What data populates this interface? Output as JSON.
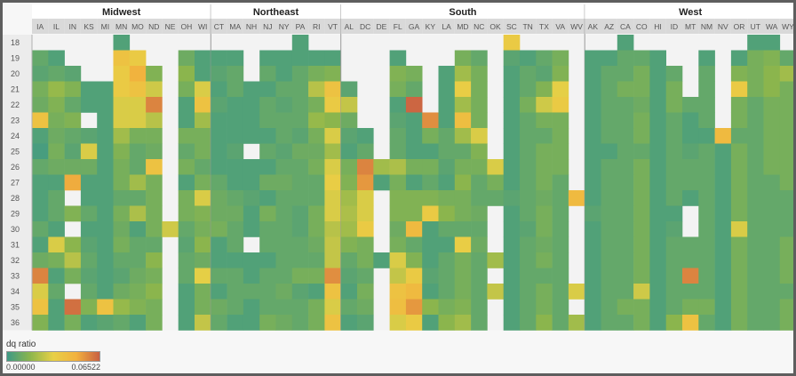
{
  "chart_data": {
    "type": "heatmap",
    "regions": [
      {
        "name": "Midwest",
        "states": [
          "IA",
          "IL",
          "IN",
          "KS",
          "MI",
          "MN",
          "MO",
          "ND",
          "NE",
          "OH",
          "WI"
        ]
      },
      {
        "name": "Northeast",
        "states": [
          "CT",
          "MA",
          "NH",
          "NJ",
          "NY",
          "PA",
          "RI",
          "VT"
        ]
      },
      {
        "name": "South",
        "states": [
          "AL",
          "DC",
          "DE",
          "FL",
          "GA",
          "KY",
          "LA",
          "MD",
          "NC",
          "OK",
          "SC",
          "TN",
          "TX",
          "VA",
          "WV"
        ]
      },
      {
        "name": "West",
        "states": [
          "AK",
          "AZ",
          "CA",
          "CO",
          "HI",
          "ID",
          "MT",
          "NM",
          "NV",
          "OR",
          "UT",
          "WA",
          "WY"
        ]
      }
    ],
    "rows": [
      "18",
      "19",
      "20",
      "21",
      "22",
      "23",
      "24",
      "25",
      "26",
      "27",
      "28",
      "29",
      "30",
      "31",
      "32",
      "33",
      "34",
      "35",
      "36"
    ],
    "legend_title": "dq ratio",
    "color_min_label": "0.00000",
    "color_max_label": "0.06522",
    "color_range": [
      0.0,
      0.06522
    ],
    "colors": [
      "#3e9a86",
      "#8cb64c",
      "#e8d046",
      "#f2b13e",
      "#c96042"
    ],
    "missing_color": "#f3f3f3",
    "values": {
      "IA": [
        null,
        0.008,
        0.006,
        0.012,
        0.01,
        0.04,
        0.004,
        0.002,
        0.008,
        0.004,
        0.004,
        0.004,
        0.008,
        0.004,
        0.01,
        0.058,
        0.03,
        0.04,
        0.014
      ],
      "IL": [
        null,
        0.004,
        0.008,
        0.018,
        0.014,
        0.012,
        0.01,
        0.012,
        0.01,
        0.004,
        0.008,
        0.008,
        0.004,
        0.03,
        0.012,
        0.004,
        0.008,
        0.004,
        0.004
      ],
      "IN": [
        null,
        null,
        0.006,
        0.014,
        0.008,
        0.014,
        0.008,
        0.006,
        0.01,
        0.05,
        null,
        0.014,
        null,
        0.016,
        0.024,
        0.012,
        null,
        0.062,
        0.012
      ],
      "KS": [
        null,
        null,
        null,
        0.004,
        0.004,
        null,
        0.006,
        0.03,
        0.01,
        0.004,
        0.004,
        0.008,
        0.004,
        0.006,
        0.008,
        0.006,
        0.008,
        0.014,
        0.004
      ],
      "MI": [
        null,
        null,
        null,
        0.004,
        0.004,
        0.004,
        0.004,
        0.004,
        0.004,
        0.004,
        0.004,
        0.004,
        0.004,
        0.004,
        0.004,
        0.004,
        0.004,
        0.04,
        0.006
      ],
      "MN": [
        0.004,
        0.04,
        0.036,
        0.036,
        0.03,
        0.03,
        0.02,
        0.014,
        0.012,
        0.012,
        0.008,
        0.012,
        0.01,
        0.012,
        0.008,
        0.006,
        0.01,
        0.018,
        0.008
      ],
      "MO": [
        null,
        0.036,
        0.048,
        0.04,
        0.03,
        0.03,
        0.012,
        0.008,
        0.008,
        0.02,
        0.008,
        0.022,
        0.004,
        0.008,
        0.008,
        0.01,
        0.012,
        0.014,
        0.004
      ],
      "ND": [
        null,
        null,
        0.014,
        0.028,
        0.058,
        0.024,
        0.012,
        0.01,
        0.04,
        0.012,
        0.012,
        0.012,
        0.012,
        0.008,
        0.016,
        0.012,
        0.016,
        0.012,
        0.012
      ],
      "NE": [
        null,
        null,
        null,
        null,
        null,
        null,
        null,
        null,
        null,
        null,
        null,
        null,
        0.028,
        null,
        null,
        null,
        null,
        null,
        null
      ],
      "OH": [
        null,
        0.01,
        0.016,
        0.012,
        0.004,
        0.004,
        0.012,
        0.008,
        0.012,
        0.004,
        0.012,
        0.012,
        0.008,
        0.006,
        0.008,
        0.008,
        0.004,
        0.004,
        0.004
      ],
      "WI": [
        null,
        0.004,
        0.004,
        0.03,
        0.04,
        0.02,
        0.012,
        0.012,
        0.008,
        0.012,
        0.03,
        0.014,
        0.012,
        0.016,
        0.01,
        0.032,
        0.012,
        0.012,
        0.026
      ],
      "CT": [
        null,
        0.004,
        0.006,
        0.004,
        0.006,
        0.004,
        0.004,
        0.004,
        0.004,
        0.008,
        0.01,
        0.01,
        0.012,
        0.004,
        0.004,
        0.008,
        0.004,
        0.01,
        0.008
      ],
      "MA": [
        null,
        0.004,
        0.008,
        0.008,
        0.004,
        0.004,
        0.004,
        0.006,
        0.004,
        0.004,
        0.008,
        0.01,
        0.008,
        0.008,
        0.004,
        0.008,
        0.008,
        0.008,
        0.004
      ],
      "NH": [
        null,
        null,
        null,
        0.004,
        0.004,
        0.004,
        0.004,
        null,
        0.004,
        0.004,
        0.006,
        0.004,
        0.004,
        null,
        0.004,
        0.004,
        0.008,
        0.004,
        0.004
      ],
      "NJ": [
        null,
        0.004,
        0.008,
        0.004,
        0.008,
        0.008,
        0.004,
        0.008,
        0.004,
        0.01,
        0.004,
        0.012,
        0.008,
        0.008,
        0.004,
        0.008,
        0.008,
        0.008,
        0.012
      ],
      "NY": [
        null,
        0.004,
        0.004,
        0.008,
        0.006,
        0.008,
        0.008,
        0.006,
        0.008,
        0.01,
        0.008,
        0.008,
        0.008,
        0.008,
        0.008,
        0.008,
        0.01,
        0.008,
        0.01
      ],
      "PA": [
        0.004,
        0.004,
        0.008,
        0.008,
        0.008,
        0.008,
        0.006,
        0.01,
        0.008,
        0.008,
        0.008,
        0.006,
        0.006,
        0.008,
        0.008,
        0.012,
        0.006,
        0.008,
        0.008
      ],
      "RI": [
        null,
        0.004,
        0.012,
        0.024,
        0.012,
        0.018,
        0.012,
        0.01,
        0.012,
        0.008,
        0.008,
        0.012,
        0.012,
        0.01,
        0.008,
        0.012,
        0.004,
        0.012,
        0.012
      ],
      "VT": [
        null,
        0.004,
        0.014,
        0.04,
        0.036,
        0.016,
        0.03,
        0.02,
        0.03,
        0.034,
        0.03,
        0.03,
        0.024,
        0.026,
        0.026,
        0.056,
        0.04,
        0.03,
        0.04
      ],
      "AL": [
        null,
        null,
        null,
        0.006,
        0.026,
        0.01,
        0.006,
        0.004,
        0.012,
        0.014,
        0.02,
        0.022,
        0.02,
        0.014,
        0.008,
        0.006,
        0.004,
        0.008,
        0.004
      ],
      "DC": [
        null,
        null,
        null,
        null,
        null,
        null,
        0.004,
        0.008,
        0.058,
        0.054,
        0.03,
        0.03,
        0.036,
        0.012,
        0.012,
        0.008,
        0.012,
        0.01,
        0.006
      ],
      "DE": [
        null,
        null,
        null,
        null,
        null,
        null,
        null,
        null,
        0.02,
        0.004,
        null,
        null,
        null,
        null,
        0.004,
        null,
        null,
        null,
        null
      ],
      "FL": [
        null,
        0.004,
        0.014,
        0.012,
        0.004,
        0.006,
        0.008,
        0.008,
        0.022,
        0.012,
        0.014,
        0.014,
        0.01,
        0.012,
        0.03,
        0.026,
        0.04,
        0.042,
        0.03
      ],
      "GA": [
        null,
        null,
        0.012,
        0.008,
        0.064,
        0.004,
        0.004,
        0.004,
        0.012,
        0.004,
        0.014,
        0.014,
        0.044,
        0.008,
        0.014,
        0.036,
        0.044,
        0.054,
        0.036
      ],
      "KY": [
        null,
        null,
        null,
        null,
        null,
        0.056,
        0.012,
        0.004,
        0.012,
        0.008,
        0.014,
        0.036,
        0.004,
        0.004,
        0.004,
        0.006,
        0.004,
        0.016,
        0.004
      ],
      "LA": [
        null,
        null,
        0.004,
        0.004,
        0.004,
        0.004,
        0.008,
        0.008,
        0.006,
        0.004,
        0.012,
        0.016,
        0.008,
        0.004,
        0.008,
        0.008,
        0.008,
        0.012,
        0.016
      ],
      "MD": [
        null,
        0.012,
        0.02,
        0.034,
        0.02,
        0.042,
        0.02,
        0.008,
        0.012,
        0.016,
        0.012,
        0.012,
        0.008,
        0.034,
        0.012,
        0.012,
        0.012,
        0.014,
        0.02
      ],
      "NC": [
        null,
        0.008,
        0.012,
        0.012,
        0.012,
        0.012,
        0.03,
        0.014,
        0.012,
        0.008,
        0.008,
        0.01,
        0.008,
        0.01,
        0.008,
        0.008,
        0.008,
        0.008,
        0.008
      ],
      "OK": [
        null,
        null,
        null,
        null,
        null,
        null,
        null,
        null,
        0.03,
        0.012,
        0.008,
        null,
        null,
        null,
        0.02,
        null,
        0.026,
        null,
        null
      ],
      "SC": [
        0.036,
        0.006,
        0.004,
        0.004,
        0.004,
        0.004,
        0.004,
        0.004,
        0.004,
        0.004,
        0.006,
        0.004,
        0.004,
        0.004,
        0.004,
        0.004,
        0.004,
        0.004,
        0.004
      ],
      "TN": [
        null,
        0.004,
        0.008,
        0.008,
        0.012,
        0.008,
        0.008,
        0.008,
        0.008,
        0.008,
        0.008,
        0.008,
        0.006,
        0.008,
        0.008,
        0.008,
        0.008,
        0.008,
        0.008
      ],
      "TX": [
        null,
        0.008,
        0.006,
        0.014,
        0.028,
        0.012,
        0.008,
        0.012,
        0.012,
        0.012,
        0.01,
        0.012,
        0.012,
        0.01,
        0.012,
        0.008,
        0.012,
        0.012,
        0.016
      ],
      "VA": [
        null,
        0.012,
        0.014,
        0.032,
        0.036,
        0.012,
        0.012,
        0.012,
        0.012,
        0.008,
        0.008,
        0.008,
        0.008,
        0.008,
        0.008,
        0.008,
        0.008,
        0.008,
        0.008
      ],
      "WV": [
        null,
        null,
        null,
        null,
        null,
        null,
        null,
        null,
        null,
        null,
        0.044,
        null,
        null,
        null,
        null,
        null,
        0.03,
        null,
        0.02
      ],
      "AK": [
        null,
        0.004,
        0.004,
        0.004,
        0.004,
        0.004,
        0.004,
        0.004,
        0.004,
        0.004,
        0.004,
        0.006,
        0.004,
        0.004,
        0.004,
        0.004,
        0.004,
        0.004,
        0.004
      ],
      "AZ": [
        null,
        0.004,
        0.008,
        0.008,
        0.008,
        0.008,
        0.008,
        0.004,
        0.008,
        0.008,
        0.008,
        0.008,
        0.008,
        0.008,
        0.008,
        0.008,
        0.008,
        0.008,
        0.008
      ],
      "CA": [
        0.004,
        0.008,
        0.008,
        0.012,
        0.008,
        0.008,
        0.008,
        0.008,
        0.008,
        0.008,
        0.008,
        0.008,
        0.008,
        0.008,
        0.008,
        0.008,
        0.008,
        0.012,
        0.008
      ],
      "CO": [
        null,
        0.008,
        0.012,
        0.012,
        0.01,
        0.012,
        0.012,
        0.008,
        0.012,
        0.012,
        0.012,
        0.012,
        0.012,
        0.012,
        0.012,
        0.012,
        0.028,
        0.012,
        0.012
      ],
      "HI": [
        null,
        0.004,
        0.004,
        0.004,
        0.004,
        0.004,
        0.004,
        0.004,
        0.004,
        0.004,
        0.004,
        0.004,
        0.004,
        0.004,
        0.004,
        0.004,
        0.004,
        0.004,
        0.004
      ],
      "ID": [
        null,
        null,
        0.008,
        0.012,
        0.012,
        0.008,
        0.008,
        0.008,
        0.008,
        0.008,
        0.008,
        0.004,
        0.006,
        0.008,
        0.008,
        0.008,
        0.008,
        0.008,
        0.016
      ],
      "MT": [
        null,
        null,
        null,
        null,
        0.008,
        0.004,
        0.004,
        0.006,
        0.008,
        0.008,
        0.004,
        null,
        null,
        0.008,
        0.008,
        0.058,
        0.008,
        0.012,
        0.04
      ],
      "NM": [
        null,
        0.004,
        0.008,
        0.008,
        0.008,
        0.008,
        0.004,
        0.008,
        0.008,
        0.008,
        0.008,
        0.008,
        0.008,
        0.008,
        0.008,
        0.008,
        0.008,
        0.012,
        0.008
      ],
      "NV": [
        null,
        null,
        null,
        null,
        null,
        null,
        0.044,
        0.004,
        0.004,
        0.004,
        0.004,
        0.004,
        0.004,
        0.004,
        0.004,
        0.004,
        0.004,
        0.004,
        0.004
      ],
      "OR": [
        null,
        0.004,
        0.014,
        0.036,
        0.012,
        0.012,
        0.008,
        0.012,
        0.012,
        0.012,
        0.012,
        0.012,
        0.03,
        0.012,
        0.012,
        0.012,
        0.012,
        0.012,
        0.012
      ],
      "UT": [
        0.004,
        0.012,
        0.012,
        0.012,
        0.008,
        0.008,
        0.008,
        0.008,
        0.008,
        0.008,
        0.008,
        0.008,
        0.008,
        0.008,
        0.008,
        0.008,
        0.008,
        0.008,
        0.008
      ],
      "WA": [
        0.004,
        0.014,
        0.016,
        0.016,
        0.012,
        0.012,
        0.012,
        0.012,
        0.012,
        0.008,
        0.008,
        0.008,
        0.008,
        0.008,
        0.008,
        0.008,
        0.008,
        0.008,
        0.008
      ],
      "WY": [
        null,
        0.008,
        0.02,
        0.012,
        0.012,
        0.012,
        0.012,
        0.012,
        0.012,
        0.012,
        0.008,
        0.008,
        0.008,
        0.012,
        0.012,
        0.012,
        0.008,
        0.012,
        0.012
      ]
    }
  }
}
